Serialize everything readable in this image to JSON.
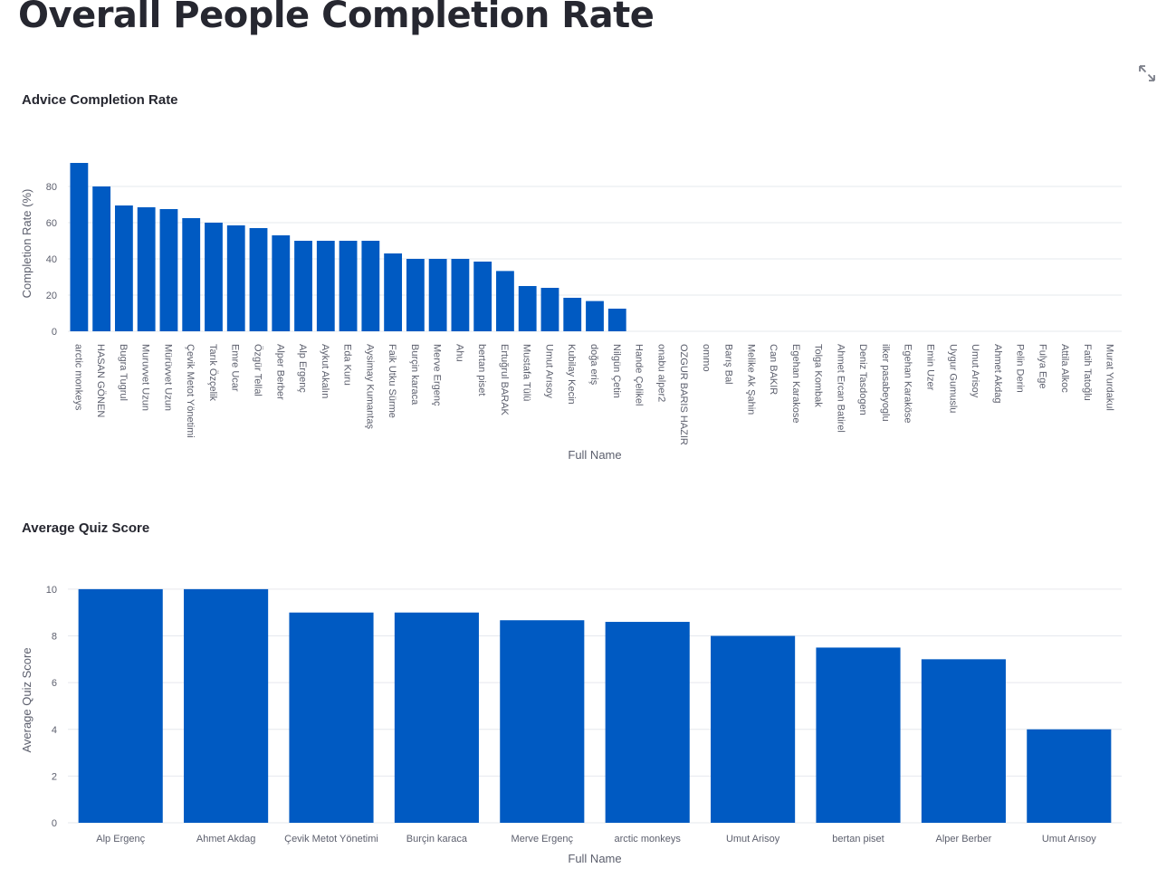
{
  "page": {
    "title": "Overall People Completion Rate",
    "expand_icon": "fullscreen-expand-icon"
  },
  "colors": {
    "bar": "#005ac2",
    "grid": "#e6e8ee",
    "text": "#5c5f6d"
  },
  "chart_data": [
    {
      "type": "bar",
      "title": "Advice Completion Rate",
      "xlabel": "Full Name",
      "ylabel": "Completion Rate (%)",
      "ylim": [
        0,
        97
      ],
      "yticks": [
        0,
        20,
        40,
        60,
        80
      ],
      "grid": true,
      "categories": [
        "arctic monkeys",
        "HASAN GÖNEN",
        "Bugra Tugrul",
        "Muruvvet Uzun",
        "Mürüvvet Uzun",
        "Çevik Metot Yönetimi",
        "Tarık Özçelik",
        "Emre Ucar",
        "Özgür Tellal",
        "Alper Berber",
        "Alp Ergenç",
        "Aykut Akalın",
        "Eda Kuru",
        "Aysimay Kumantaş",
        "Faik Utku Sürme",
        "Burçin karaca",
        "Merve Ergenç",
        "Ahu",
        "bertan piset",
        "Ertuğrul BARAK",
        "Mustafa Tülü",
        "Umut Arısoy",
        "Kubilay Kecin",
        "doğa eriş",
        "Nilgün Çetin",
        "Hande Çelikel",
        "onabu alper2",
        "OZGUR BARIS HAZIR",
        "ommo",
        "Barış Bal",
        "Melike Ak Şahin",
        "Can BAKIR",
        "Egehan Karakose",
        "Tolga Kombak",
        "Ahmet Ercan Batirel",
        "Deniz Tasdogen",
        "ilker pasabeyoglu",
        "Egehan Karaköse",
        "Emin Uzer",
        "Uygur Gumuslu",
        "Umut Arisoy",
        "Ahmet Akdag",
        "Pelin Derin",
        "Fulya Ege",
        "Attila Alkoc",
        "Fatih Tatoğlu",
        "Murat Yurdakul"
      ],
      "values": [
        93,
        80,
        69.5,
        68.5,
        67.5,
        62.5,
        60,
        58.5,
        57,
        53,
        50,
        50,
        50,
        50,
        43,
        40,
        40,
        40,
        38.5,
        33.3,
        25,
        24,
        18.5,
        16.7,
        12.5,
        0,
        0,
        0,
        0,
        0,
        0,
        0,
        0,
        0,
        0,
        0,
        0,
        0,
        0,
        0,
        0,
        0,
        0,
        0,
        0,
        0,
        0
      ]
    },
    {
      "type": "bar",
      "title": "Average Quiz Score",
      "xlabel": "Full Name",
      "ylabel": "Average Quiz Score",
      "ylim": [
        0,
        10.5
      ],
      "yticks": [
        0,
        2,
        4,
        6,
        8,
        10
      ],
      "grid": true,
      "categories": [
        "Alp Ergenç",
        "Ahmet Akdag",
        "Çevik Metot Yönetimi",
        "Burçin karaca",
        "Merve Ergenç",
        "arctic monkeys",
        "Umut Arisoy",
        "bertan piset",
        "Alper Berber",
        "Umut Arısoy"
      ],
      "values": [
        10,
        10,
        9,
        9,
        8.67,
        8.6,
        8,
        7.5,
        7,
        4
      ]
    }
  ]
}
